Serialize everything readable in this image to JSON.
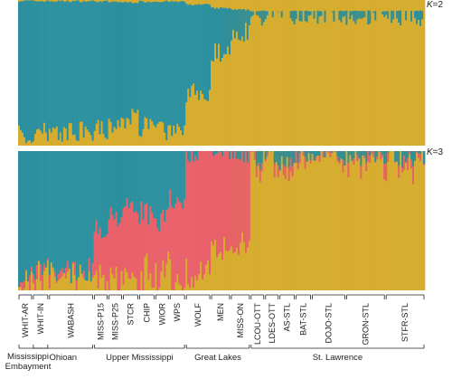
{
  "chart_data": {
    "type": "bar",
    "subtype": "stacked-100-structure-plot",
    "colors": {
      "cluster_teal": "#2b8f9e",
      "cluster_gold": "#d6ad2e",
      "cluster_red": "#e8606a"
    },
    "panels": [
      {
        "label_prefix": "K",
        "label_value": "=2",
        "clusters": [
          "cluster_teal",
          "cluster_gold"
        ]
      },
      {
        "label_prefix": "K",
        "label_value": "=3",
        "clusters": [
          "cluster_teal",
          "cluster_red",
          "cluster_gold"
        ]
      }
    ],
    "populations": [
      {
        "name": "WHIT-AR",
        "n": 8
      },
      {
        "name": "WHIT-IN",
        "n": 9
      },
      {
        "name": "WABASH",
        "n": 25
      },
      {
        "name": "MISS-P15",
        "n": 8
      },
      {
        "name": "MISS-P25",
        "n": 8
      },
      {
        "name": "STCR",
        "n": 9
      },
      {
        "name": "CHIP",
        "n": 9
      },
      {
        "name": "WIOR",
        "n": 8
      },
      {
        "name": "WPS",
        "n": 9
      },
      {
        "name": "WOLF",
        "n": 14
      },
      {
        "name": "MEN",
        "n": 11
      },
      {
        "name": "MISS-ON",
        "n": 11
      },
      {
        "name": "LCOU-OTT",
        "n": 8
      },
      {
        "name": "LDES-OTT",
        "n": 8
      },
      {
        "name": "AS-STL",
        "n": 9
      },
      {
        "name": "BAT-STL",
        "n": 9
      },
      {
        "name": "DOJO-STL",
        "n": 19
      },
      {
        "name": "GRON-STL",
        "n": 22
      },
      {
        "name": "STFR-STL",
        "n": 22
      }
    ],
    "regions": [
      {
        "lines": [
          "Mississippi",
          "Embayment"
        ],
        "pops": [
          "WHIT-AR",
          "WHIT-IN"
        ]
      },
      {
        "lines": [
          "Ohioan"
        ],
        "pops": [
          "WHIT-IN",
          "WABASH"
        ]
      },
      {
        "lines": [
          "Upper Mississippi"
        ],
        "pops": [
          "MISS-P15",
          "MISS-P25",
          "STCR",
          "CHIP",
          "WIOR",
          "WPS"
        ]
      },
      {
        "lines": [
          "Great Lakes"
        ],
        "pops": [
          "WOLF",
          "MEN",
          "MISS-ON"
        ]
      },
      {
        "lines": [
          "St. Lawrence"
        ],
        "pops": [
          "LCOU-OTT",
          "LDES-OTT",
          "AS-STL",
          "BAT-STL",
          "DOJO-STL",
          "GRON-STL",
          "STFR-STL"
        ]
      }
    ],
    "group_means": {
      "k2_teal_fraction": [
        0.93,
        0.9,
        0.9,
        0.88,
        0.84,
        0.8,
        0.86,
        0.88,
        0.86,
        0.6,
        0.3,
        0.15,
        0.03,
        0.02,
        0.02,
        0.02,
        0.02,
        0.02,
        0.03
      ],
      "k3_teal_fraction": [
        0.9,
        0.85,
        0.86,
        0.55,
        0.45,
        0.4,
        0.45,
        0.5,
        0.35,
        0.0,
        0.0,
        0.0,
        0.05,
        0.03,
        0.05,
        0.02,
        0.02,
        0.02,
        0.03
      ],
      "k3_red_fraction": [
        0.03,
        0.04,
        0.02,
        0.35,
        0.45,
        0.5,
        0.45,
        0.4,
        0.55,
        0.85,
        0.7,
        0.65,
        0.04,
        0.03,
        0.03,
        0.02,
        0.02,
        0.03,
        0.04
      ]
    },
    "ylim": [
      0,
      1
    ],
    "title": "",
    "xlabel": "",
    "ylabel": ""
  }
}
